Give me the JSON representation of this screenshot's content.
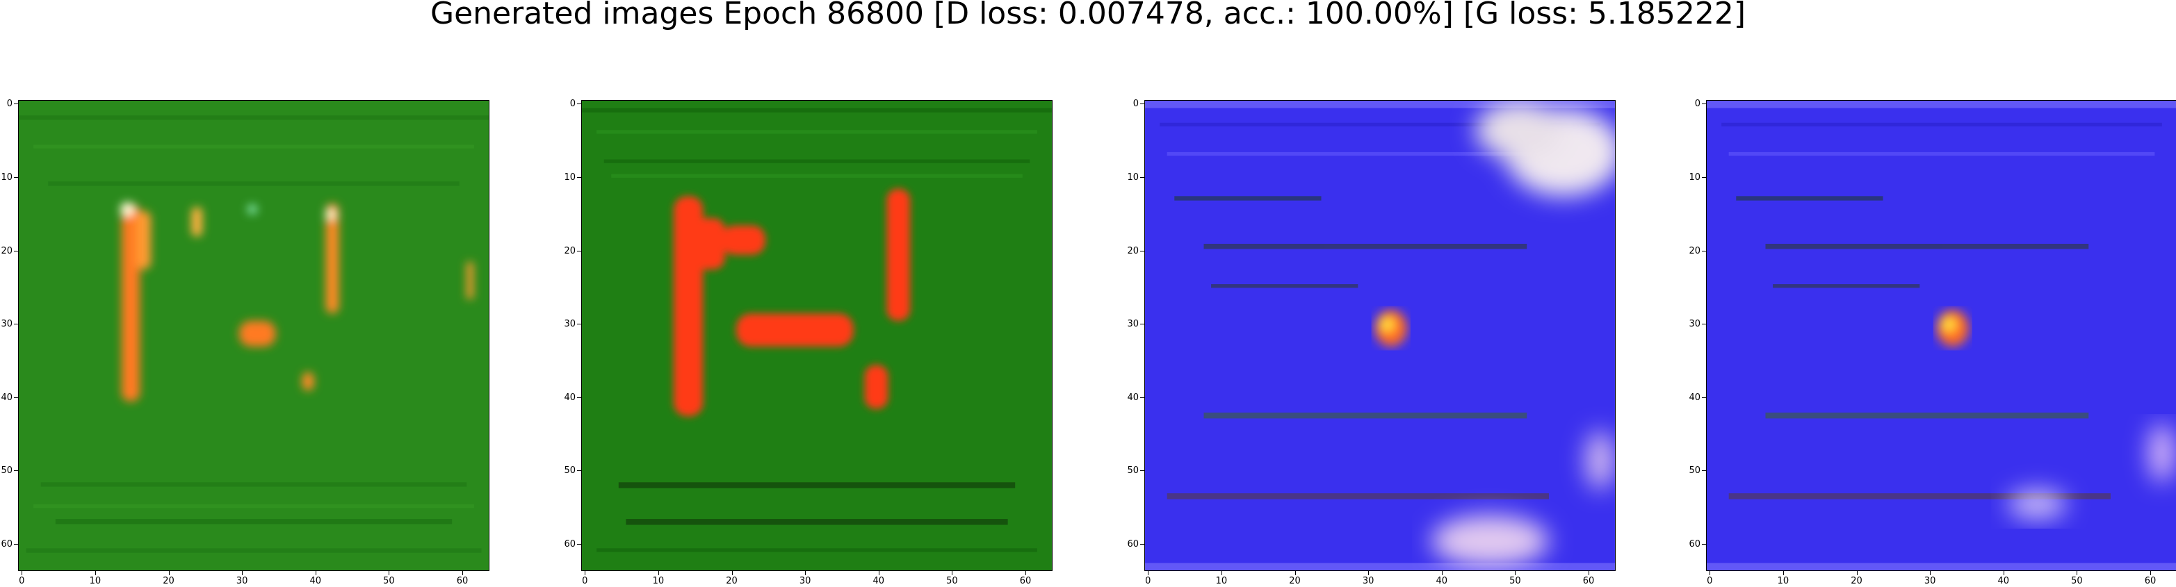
{
  "figure": {
    "title": "Generated images Epoch 86800 [D loss: 0.007478, acc.: 100.00%] [G loss: 5.185222]"
  },
  "axis_ticks": {
    "y": [
      "0",
      "10",
      "20",
      "30",
      "40",
      "50",
      "60"
    ],
    "x": [
      "0",
      "10",
      "20",
      "30",
      "40",
      "50",
      "60"
    ]
  },
  "panels": [
    {
      "name": "generated-image-1",
      "base_color": "#2a8a1c",
      "blob_color": "#ff5a1e"
    },
    {
      "name": "generated-image-2",
      "base_color": "#1f7f14",
      "blob_color": "#ff3a18"
    },
    {
      "name": "generated-image-3",
      "base_color": "#3a30ee",
      "blob_color": "#ff6a20"
    },
    {
      "name": "generated-image-4",
      "base_color": "#3a30ee",
      "blob_color": "#ff6a20"
    }
  ]
}
